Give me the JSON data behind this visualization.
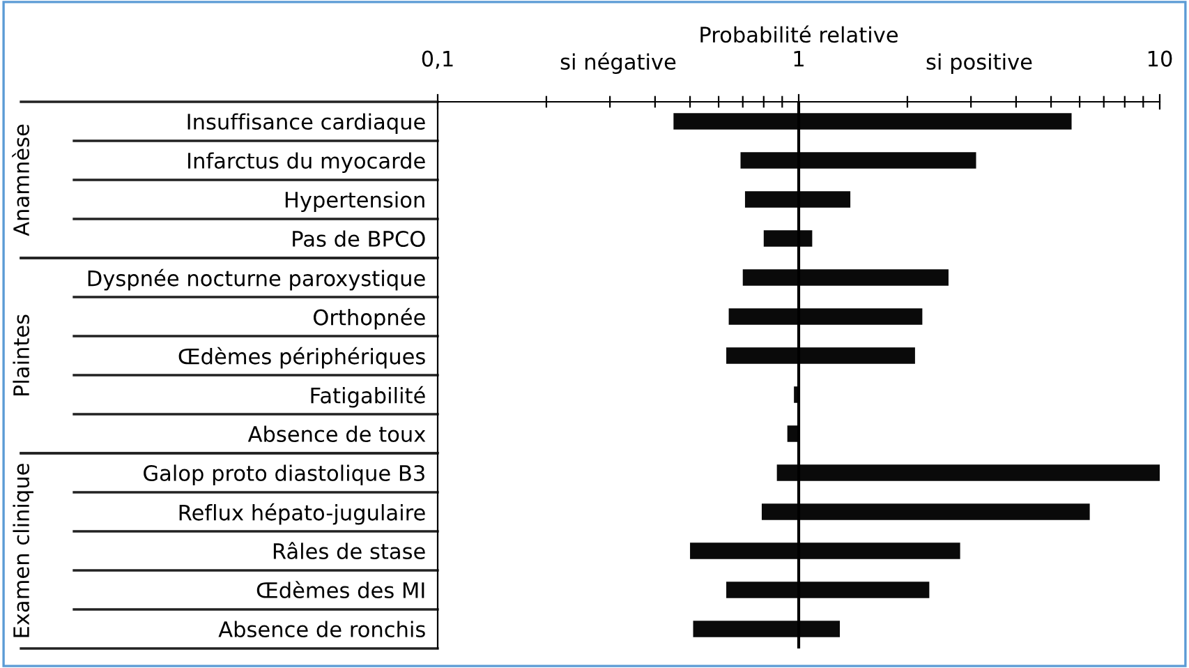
{
  "chart_data": [
    {
      "type": "bar",
      "orientation": "horizontal",
      "xlabel": "Probabilité relative",
      "ylabel": "Anamnèse",
      "log": "x",
      "color": "#0a0a0a",
      "categories": [
        "Insuffisance cardiaque",
        "Infarctus du myocarde",
        "Hypertension",
        "Pas de BPCO"
      ],
      "base": [
        0.45,
        0.69,
        0.71,
        0.8
      ],
      "values": [
        5.25,
        2.41,
        0.68,
        0.29
      ],
      "xlim": [
        0.1,
        10
      ],
      "xticks": [
        {
          "value": 0.1,
          "label": "0,1"
        },
        {
          "value": 0.2,
          "label": null
        },
        {
          "value": 0.3,
          "label": null
        },
        {
          "value": 0.4,
          "label": null
        },
        {
          "value": 0.5,
          "label": null
        },
        {
          "value": 0.6,
          "label": null
        },
        {
          "value": 0.7,
          "label": null
        },
        {
          "value": 0.8,
          "label": null
        },
        {
          "value": 0.9,
          "label": null
        },
        1,
        {
          "value": 2,
          "label": null
        },
        {
          "value": 3,
          "label": null
        },
        {
          "value": 4,
          "label": null
        },
        {
          "value": 5,
          "label": null
        },
        {
          "value": 6,
          "label": null
        },
        {
          "value": 7,
          "label": null
        },
        {
          "value": 8,
          "label": null
        },
        {
          "value": 9,
          "label": null
        },
        10
      ],
      "ref_lines": [
        {
          "axis": "x",
          "value": 1,
          "color": "#000000"
        }
      ],
      "annotations": [
        "si négative",
        "si positive"
      ]
    },
    {
      "type": "bar",
      "orientation": "horizontal",
      "ylabel": "Plaintes",
      "log": "x",
      "color": "#0a0a0a",
      "categories": [
        "Dyspnée nocturne paroxystique",
        "Orthopnée",
        "Œdèmes périphériques",
        "Fatigabilité",
        "Absence de toux"
      ],
      "base": [
        0.7,
        0.64,
        0.63,
        0.97,
        0.93
      ],
      "values": [
        1.9,
        1.56,
        1.47,
        0.03,
        0.07
      ],
      "xlim": [
        0.1,
        10
      ],
      "tick_labels": "y",
      "ref_lines": [
        {
          "axis": "x",
          "value": 1,
          "color": "#000000"
        }
      ]
    },
    {
      "type": "bar",
      "orientation": "horizontal",
      "ylabel": "Examen clinique",
      "log": "x",
      "color": "#0a0a0a",
      "categories": [
        "Galop proto diastolique B3",
        "Reflux hépato-jugulaire",
        "Râles de stase",
        "Œdèmes des MI",
        "Absence de ronchis"
      ],
      "base": [
        0.87,
        0.79,
        0.5,
        0.63,
        0.51
      ],
      "values": [
        9.13,
        5.61,
        2.3,
        1.67,
        0.79
      ],
      "xlim": [
        0.1,
        10
      ],
      "tick_labels": "y",
      "ref_lines": [
        {
          "axis": "x",
          "value": 1,
          "color": "#000000"
        }
      ]
    }
  ]
}
